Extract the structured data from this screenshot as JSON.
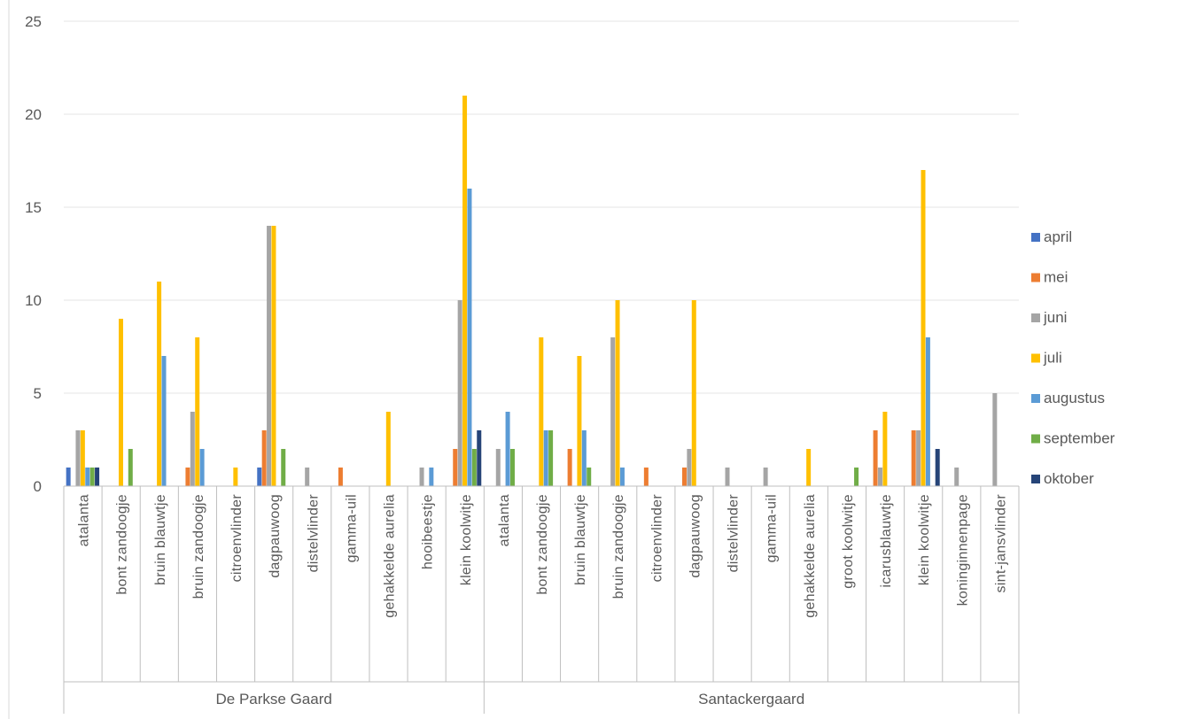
{
  "chart_data": {
    "type": "bar",
    "ylim": [
      0,
      25
    ],
    "yticks": [
      0,
      5,
      10,
      15,
      20,
      25
    ],
    "grid": true,
    "legend_position": "right",
    "groups": [
      {
        "name": "De Parkse Gaard",
        "categories": [
          "atalanta",
          "bont zandoogje",
          "bruin blauwtje",
          "bruin zandoogje",
          "citroenvlinder",
          "dagpauwoog",
          "distelvlinder",
          "gamma-uil",
          "gehakkelde aurelia",
          "hooibeestje",
          "klein koolwitje"
        ]
      },
      {
        "name": "Santackergaard",
        "categories": [
          "atalanta",
          "bont zandoogje",
          "bruin blauwtje",
          "bruin zandoogje",
          "citroenvlinder",
          "dagpauwoog",
          "distelvlinder",
          "gamma-uil",
          "gehakkelde aurelia",
          "groot koolwitje",
          "icarusblauwtje",
          "klein koolwitje",
          "koninginnenpage",
          "sint-jansvlinder"
        ]
      }
    ],
    "series": [
      {
        "name": "april",
        "color": "#4472C4",
        "values": [
          1,
          0,
          0,
          0,
          0,
          1,
          0,
          0,
          0,
          0,
          0,
          0,
          0,
          0,
          0,
          0,
          0,
          0,
          0,
          0,
          0,
          0,
          0,
          0,
          0
        ]
      },
      {
        "name": "mei",
        "color": "#ED7D31",
        "values": [
          0,
          0,
          0,
          1,
          0,
          3,
          0,
          1,
          0,
          0,
          2,
          0,
          0,
          2,
          0,
          1,
          1,
          0,
          0,
          0,
          0,
          3,
          3,
          0,
          0
        ]
      },
      {
        "name": "juni",
        "color": "#A5A5A5",
        "values": [
          3,
          0,
          0,
          4,
          0,
          14,
          1,
          0,
          0,
          1,
          10,
          2,
          0,
          0,
          8,
          0,
          2,
          1,
          1,
          0,
          0,
          1,
          3,
          1,
          5
        ]
      },
      {
        "name": "juli",
        "color": "#FFC000",
        "values": [
          3,
          9,
          11,
          8,
          1,
          14,
          0,
          0,
          4,
          0,
          21,
          0,
          8,
          7,
          10,
          0,
          10,
          0,
          0,
          2,
          0,
          4,
          17,
          0,
          0
        ]
      },
      {
        "name": "augustus",
        "color": "#5B9BD5",
        "values": [
          1,
          0,
          7,
          2,
          0,
          0,
          0,
          0,
          0,
          1,
          16,
          4,
          3,
          3,
          1,
          0,
          0,
          0,
          0,
          0,
          0,
          0,
          8,
          0,
          0
        ]
      },
      {
        "name": "september",
        "color": "#70AD47",
        "values": [
          1,
          2,
          0,
          0,
          0,
          2,
          0,
          0,
          0,
          0,
          2,
          2,
          3,
          1,
          0,
          0,
          0,
          0,
          0,
          0,
          1,
          0,
          0,
          0,
          0
        ]
      },
      {
        "name": "oktober",
        "color": "#264478",
        "values": [
          1,
          0,
          0,
          0,
          0,
          0,
          0,
          0,
          0,
          0,
          3,
          0,
          0,
          0,
          0,
          0,
          0,
          0,
          0,
          0,
          0,
          0,
          2,
          0,
          0
        ]
      }
    ]
  }
}
